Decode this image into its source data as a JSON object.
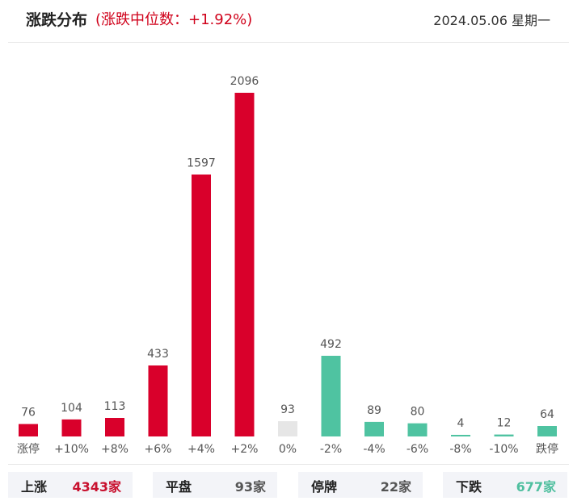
{
  "header": {
    "title": "涨跌分布",
    "median_text": "(涨跌中位数：+1.92%)",
    "date": "2024.05.06 星期一"
  },
  "colors": {
    "up": "#d9002b",
    "flat": "#e6e6e6",
    "down": "#4fc3a1",
    "up_text": "#c8102e",
    "flat_text": "#555555",
    "down_text": "#4fbf9f"
  },
  "chart_data": {
    "type": "bar",
    "categories": [
      "涨停",
      "+10%",
      "+8%",
      "+6%",
      "+4%",
      "+2%",
      "0%",
      "-2%",
      "-4%",
      "-6%",
      "-8%",
      "-10%",
      "跌停"
    ],
    "values": [
      76,
      104,
      113,
      433,
      1597,
      2096,
      93,
      492,
      89,
      80,
      4,
      12,
      64
    ],
    "groups": [
      "up",
      "up",
      "up",
      "up",
      "up",
      "up",
      "flat",
      "down",
      "down",
      "down",
      "down",
      "down",
      "down"
    ],
    "title": "",
    "xlabel": "",
    "ylabel": "",
    "ylim": [
      0,
      2096
    ],
    "grid": false
  },
  "summary": [
    {
      "label": "上涨",
      "value": "4343家",
      "kind": "up"
    },
    {
      "label": "平盘",
      "value": "93家",
      "kind": "flat"
    },
    {
      "label": "停牌",
      "value": "22家",
      "kind": "flat"
    },
    {
      "label": "下跌",
      "value": "677家",
      "kind": "down"
    }
  ]
}
